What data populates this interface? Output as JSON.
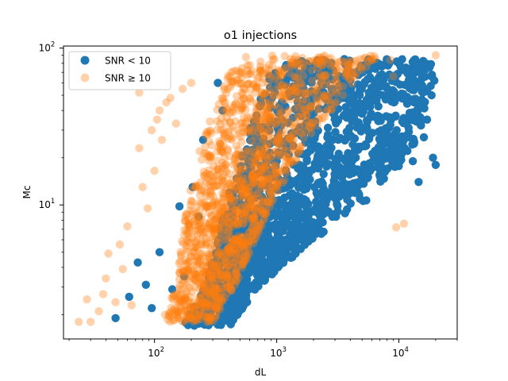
{
  "chart_data": {
    "type": "scatter",
    "title": "o1 injections",
    "xlabel": "dL",
    "ylabel": "Mc",
    "xscale": "log",
    "yscale": "log",
    "xlim": [
      18,
      30000
    ],
    "ylim": [
      1.4,
      103
    ],
    "x_ticks": [
      {
        "value": 100,
        "base": "10",
        "exp": "2"
      },
      {
        "value": 1000,
        "base": "10",
        "exp": "3"
      },
      {
        "value": 10000,
        "base": "10",
        "exp": "4"
      }
    ],
    "y_ticks": [
      {
        "value": 10,
        "base": "10",
        "exp": "1"
      },
      {
        "value": 100,
        "base": "10",
        "exp": "2"
      }
    ],
    "grid": false,
    "legend": {
      "placement": "top-left",
      "entries": [
        {
          "label": "SNR < 10",
          "color": "#1f77b4",
          "alpha": 1.0
        },
        {
          "label": "SNR ≥ 10",
          "color": "#ff7f0e",
          "alpha": 0.35
        }
      ]
    },
    "series": [
      {
        "name": "SNR < 10",
        "color": "#1f77b4",
        "alpha": 1.0,
        "band": {
          "mc_range": [
            1.7,
            85
          ],
          "dl_low": [
            [
              1.7,
              170
            ],
            [
              3,
              260
            ],
            [
              10,
              380
            ],
            [
              30,
              600
            ],
            [
              85,
              950
            ]
          ],
          "dl_high": [
            [
              1.7,
              420
            ],
            [
              3,
              700
            ],
            [
              10,
              4500
            ],
            [
              20,
              12000
            ],
            [
              40,
              17000
            ],
            [
              85,
              20000
            ]
          ]
        },
        "points": [
          [
            48,
            1.9
          ],
          [
            62,
            2.6
          ],
          [
            73,
            4.3
          ],
          [
            85,
            3.1
          ],
          [
            95,
            2.2
          ],
          [
            110,
            5.0
          ],
          [
            140,
            2.9
          ],
          [
            160,
            9.8
          ],
          [
            175,
            3.5
          ],
          [
            205,
            13
          ],
          [
            230,
            8.4
          ],
          [
            250,
            26
          ],
          [
            330,
            60
          ],
          [
            360,
            40
          ],
          [
            5100,
            10.6
          ],
          [
            5400,
            10.7
          ],
          [
            9500,
            20
          ],
          [
            10500,
            21
          ],
          [
            12000,
            27
          ],
          [
            13000,
            19
          ],
          [
            14500,
            14
          ],
          [
            16000,
            27
          ],
          [
            19000,
            20
          ],
          [
            20000,
            18
          ],
          [
            17000,
            35
          ],
          [
            18500,
            50
          ],
          [
            19500,
            62
          ],
          [
            15000,
            80
          ]
        ]
      },
      {
        "name": "SNR ≥ 10",
        "color": "#ff7f0e",
        "alpha": 0.35,
        "band": {
          "mc_range": [
            1.8,
            90
          ],
          "dl_low": [
            [
              1.8,
              110
            ],
            [
              3,
              150
            ],
            [
              10,
              180
            ],
            [
              30,
              260
            ],
            [
              90,
              450
            ]
          ],
          "dl_high": [
            [
              1.8,
              300
            ],
            [
              3,
              450
            ],
            [
              10,
              900
            ],
            [
              30,
              2000
            ],
            [
              90,
              7000
            ]
          ]
        },
        "points": [
          [
            24,
            1.8
          ],
          [
            28,
            2.5
          ],
          [
            30,
            1.8
          ],
          [
            35,
            2.1
          ],
          [
            38,
            2.7
          ],
          [
            40,
            3.4
          ],
          [
            42,
            4.9
          ],
          [
            48,
            2.4
          ],
          [
            52,
            5.6
          ],
          [
            55,
            3.9
          ],
          [
            60,
            7.3
          ],
          [
            65,
            2.3
          ],
          [
            75,
            52
          ],
          [
            75,
            23
          ],
          [
            80,
            13
          ],
          [
            88,
            9.5
          ],
          [
            95,
            30
          ],
          [
            100,
            16.5
          ],
          [
            105,
            35
          ],
          [
            110,
            40
          ],
          [
            115,
            26
          ],
          [
            125,
            45
          ],
          [
            135,
            48
          ],
          [
            150,
            33
          ],
          [
            170,
            55
          ],
          [
            200,
            60
          ],
          [
            9500,
            7.2
          ],
          [
            11000,
            7.6
          ],
          [
            8500,
            84
          ],
          [
            9000,
            66
          ],
          [
            20000,
            90
          ]
        ]
      }
    ]
  }
}
